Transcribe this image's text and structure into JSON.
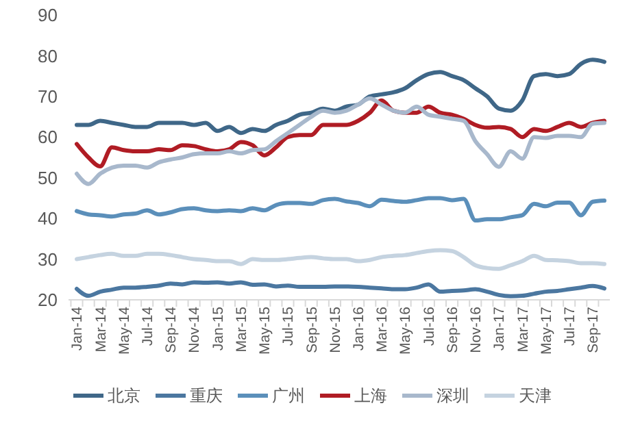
{
  "chart_data": {
    "type": "line",
    "categories": [
      "Jan-14",
      null,
      "Mar-14",
      null,
      "May-14",
      null,
      "Jul-14",
      null,
      "Sep-14",
      null,
      "Nov-14",
      null,
      "Jan-15",
      null,
      "Mar-15",
      null,
      "May-15",
      null,
      "Jul-15",
      null,
      "Sep-15",
      null,
      "Nov-15",
      null,
      "Jan-16",
      null,
      "Mar-16",
      null,
      "May-16",
      null,
      "Jul-16",
      null,
      "Sep-16",
      null,
      "Nov-16",
      null,
      "Jan-17",
      null,
      "Mar-17",
      null,
      "May-17",
      null,
      "Jul-17",
      null,
      "Sep-17",
      null
    ],
    "ylim": [
      20,
      90
    ],
    "yticks": [
      20,
      30,
      40,
      50,
      60,
      70,
      80,
      90
    ],
    "grid": false,
    "legend": "bottom",
    "marker": "none",
    "line_style": "solid",
    "series": [
      {
        "name": "北京",
        "color": "#3f6788",
        "values": [
          63,
          63,
          64,
          63.5,
          63,
          62.5,
          62.5,
          63.5,
          63.5,
          63.5,
          63,
          63.5,
          61.5,
          62.5,
          61,
          62,
          61.5,
          63,
          64,
          65.5,
          66,
          67,
          66.5,
          67.5,
          68,
          70,
          70.5,
          71,
          72,
          74,
          75.5,
          76,
          75,
          74,
          72,
          70,
          67,
          66.5,
          69,
          75,
          75.5,
          75,
          75.5,
          78,
          79,
          78.5
        ]
      },
      {
        "name": "重庆",
        "color": "#4b77a0",
        "values": [
          22.7,
          21,
          22,
          22.5,
          23,
          23,
          23.2,
          23.5,
          24,
          23.8,
          24.3,
          24.2,
          24.3,
          24,
          24.3,
          23.7,
          23.8,
          23.3,
          23.5,
          23.2,
          23.2,
          23.2,
          23.3,
          23.3,
          23.2,
          23,
          22.8,
          22.6,
          22.6,
          23,
          23.8,
          22,
          22.2,
          22.3,
          22.6,
          22,
          21.2,
          20.9,
          21,
          21.5,
          22,
          22.2,
          22.6,
          23,
          23.4,
          22.8
        ]
      },
      {
        "name": "广州",
        "color": "#5b8fba",
        "values": [
          41.8,
          41,
          40.8,
          40.5,
          41,
          41.2,
          42,
          41,
          41.5,
          42.3,
          42.5,
          42,
          41.8,
          42,
          41.8,
          42.5,
          42,
          43.3,
          43.8,
          43.8,
          43.6,
          44.5,
          44.8,
          44.2,
          43.8,
          43,
          44.6,
          44.3,
          44.1,
          44.5,
          45,
          45,
          44.5,
          44.8,
          39.5,
          39.8,
          39.8,
          40.3,
          40.8,
          43.6,
          43,
          43.9,
          43.9,
          40.8,
          44.1,
          44.4
        ]
      },
      {
        "name": "上海",
        "color": "#b01c24",
        "values": [
          58.3,
          55,
          52.8,
          57.5,
          56.8,
          56.5,
          56.5,
          57,
          56.8,
          58,
          57.8,
          57,
          56.5,
          57,
          58.8,
          58,
          55.5,
          57.5,
          60,
          60.5,
          60.5,
          63,
          63,
          63,
          64,
          66,
          69,
          66.5,
          66,
          66,
          67.5,
          66,
          65.5,
          64.5,
          63,
          62.3,
          62.5,
          62,
          60,
          62,
          61.5,
          62.5,
          63.5,
          62.5,
          63.5,
          64
        ]
      },
      {
        "name": "深圳",
        "color": "#a8b8cc",
        "values": [
          51,
          48.5,
          51,
          52.5,
          53,
          53,
          52.5,
          53.8,
          54.5,
          55,
          55.8,
          56,
          56,
          56.5,
          56,
          56.8,
          57,
          59,
          61,
          63,
          65,
          66.5,
          66,
          66.5,
          68,
          69.5,
          68,
          66.5,
          66,
          67.5,
          65.5,
          65,
          64.5,
          64,
          59,
          55.8,
          52.7,
          56.5,
          54.7,
          60,
          59.8,
          60.3,
          60.3,
          60,
          63.3,
          63.5
        ]
      },
      {
        "name": "天津",
        "color": "#c5d3e0",
        "values": [
          30,
          30.5,
          31,
          31.3,
          30.8,
          30.8,
          31.3,
          31.3,
          31,
          30.5,
          30,
          29.8,
          29.5,
          29.5,
          28.8,
          30,
          29.8,
          29.8,
          30,
          30.3,
          30.5,
          30.2,
          30,
          30,
          29.5,
          29.8,
          30.5,
          30.8,
          31,
          31.5,
          32,
          32.2,
          32,
          30.5,
          28.5,
          27.8,
          27.6,
          28.5,
          29.5,
          30.8,
          29.8,
          29.7,
          29.5,
          29,
          29,
          28.8
        ]
      }
    ]
  }
}
